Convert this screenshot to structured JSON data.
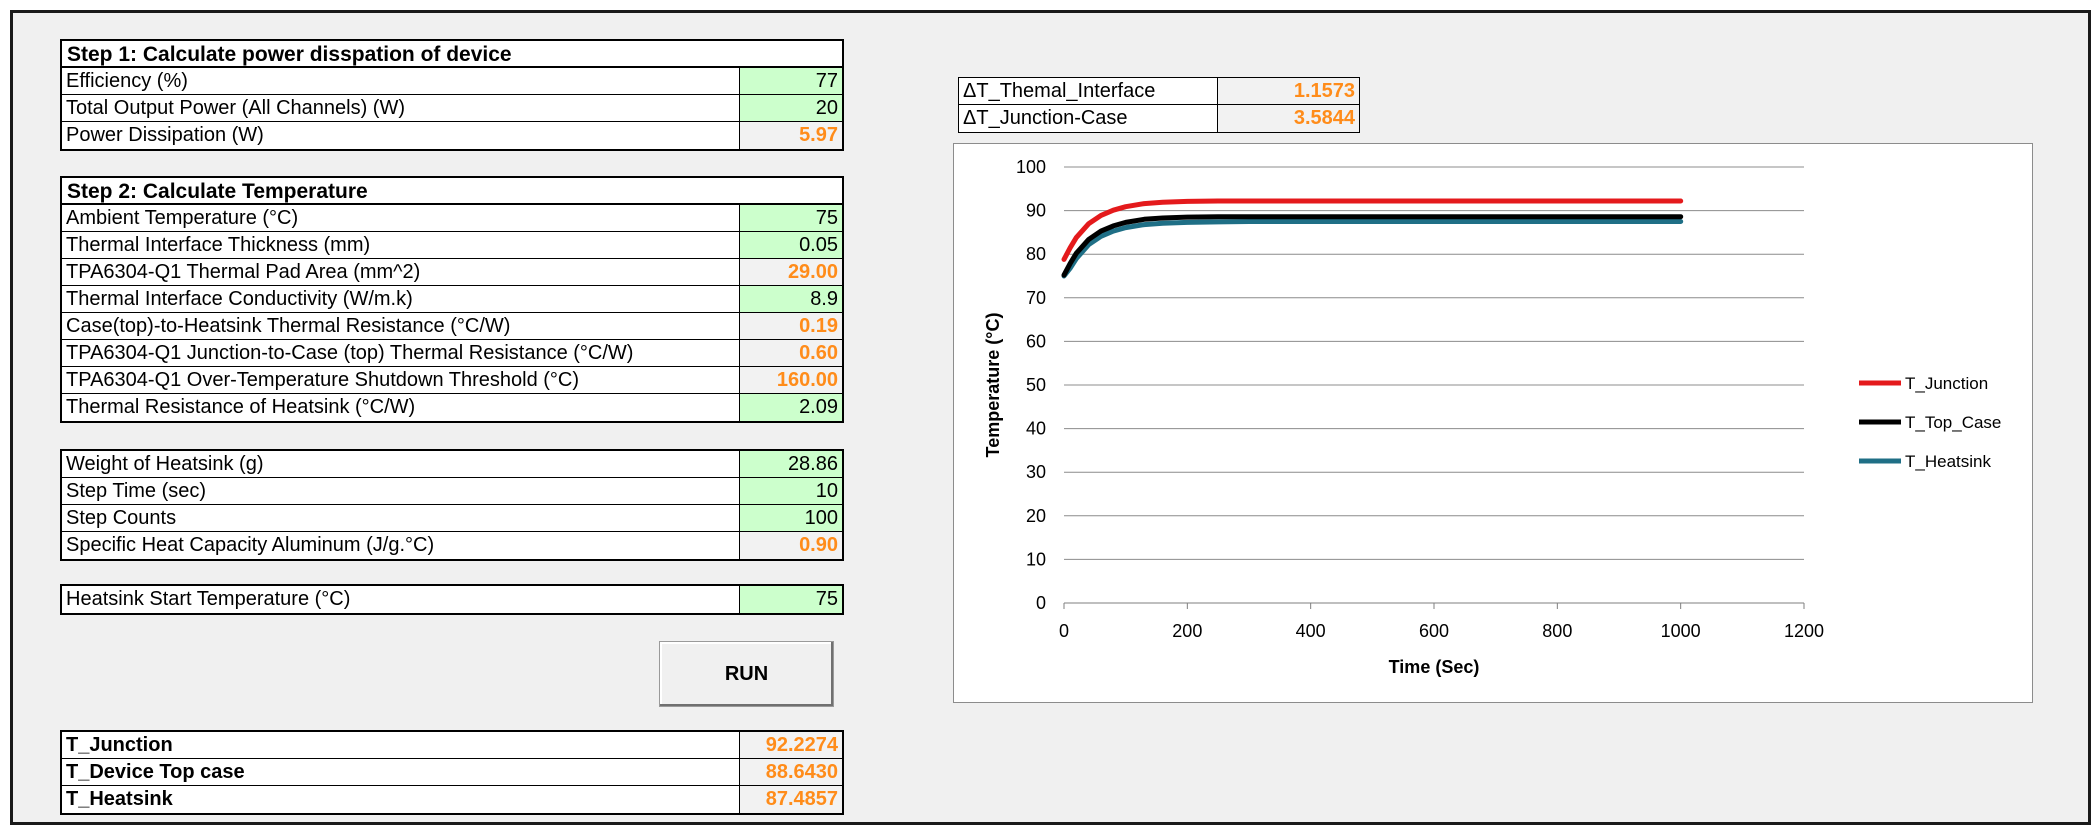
{
  "step1": {
    "title": "Step 1: Calculate power disspation of device",
    "rows": [
      {
        "label": "Efficiency (%)",
        "value": "77"
      },
      {
        "label": "Total Output Power (All Channels) (W)",
        "value": "20"
      },
      {
        "label": "Power Dissipation (W)",
        "value": "5.97"
      }
    ]
  },
  "step2": {
    "title": "Step 2: Calculate Temperature",
    "rows": [
      {
        "label": "Ambient Temperature (°C)",
        "value": "75"
      },
      {
        "label": "Thermal Interface Thickness (mm)",
        "value": "0.05"
      },
      {
        "label": "TPA6304-Q1 Thermal Pad Area (mm^2)",
        "value": "29.00"
      },
      {
        "label": "Thermal Interface Conductivity (W/m.k)",
        "value": "8.9"
      },
      {
        "label": "Case(top)-to-Heatsink Thermal Resistance (°C/W)",
        "value": "0.19"
      },
      {
        "label": "TPA6304-Q1 Junction-to-Case (top) Thermal Resistance (°C/W)",
        "value": "0.60"
      },
      {
        "label": "TPA6304-Q1 Over-Temperature Shutdown Threshold (°C)",
        "value": "160.00"
      },
      {
        "label": "Thermal Resistance of Heatsink (°C/W)",
        "value": "2.09"
      }
    ]
  },
  "heatsink": {
    "rows": [
      {
        "label": "Weight of Heatsink (g)",
        "value": "28.86"
      },
      {
        "label": "Step Time (sec)",
        "value": "10"
      },
      {
        "label": "Step Counts",
        "value": "100"
      },
      {
        "label": "Specific Heat Capacity Aluminum (J/g.°C)",
        "value": "0.90"
      }
    ]
  },
  "start": {
    "rows": [
      {
        "label": "Heatsink Start Temperature (°C)",
        "value": "75"
      }
    ]
  },
  "run_label": "RUN",
  "results": {
    "rows": [
      {
        "label": "T_Junction",
        "value": "92.2274"
      },
      {
        "label": "T_Device Top case",
        "value": "88.6430"
      },
      {
        "label": "T_Heatsink",
        "value": "87.4857"
      }
    ]
  },
  "deltas": {
    "rows": [
      {
        "label": "ΔT_Themal_Interface",
        "value": "1.1573"
      },
      {
        "label": "ΔT_Junction-Case",
        "value": "3.5844"
      }
    ]
  },
  "colors": {
    "input_fill": "#ccffcc",
    "calc_text": "#ff8c1a",
    "junction": "#e41a1c",
    "top_case": "#000000",
    "heatsink": "#1f6f86"
  },
  "chart_data": {
    "type": "line",
    "xlabel": "Time (Sec)",
    "ylabel": "Temperature (°C)",
    "xlim": [
      0,
      1200
    ],
    "ylim": [
      0,
      100
    ],
    "xticks": [
      0,
      200,
      400,
      600,
      800,
      1000,
      1200
    ],
    "yticks": [
      0,
      10,
      20,
      30,
      40,
      50,
      60,
      70,
      80,
      90,
      100
    ],
    "grid": "horizontal",
    "legend": "right",
    "series": [
      {
        "name": "T_Junction",
        "color": "#e41a1c",
        "x": [
          0,
          10,
          20,
          40,
          60,
          80,
          100,
          130,
          160,
          200,
          250,
          300,
          400,
          600,
          800,
          1000
        ],
        "y": [
          78.8,
          81.5,
          83.8,
          87.0,
          88.9,
          90.1,
          90.9,
          91.6,
          91.9,
          92.1,
          92.2,
          92.2,
          92.2,
          92.2,
          92.2,
          92.2
        ]
      },
      {
        "name": "T_Top_Case",
        "color": "#000000",
        "x": [
          0,
          10,
          20,
          40,
          60,
          80,
          100,
          130,
          160,
          200,
          250,
          300,
          400,
          600,
          800,
          1000
        ],
        "y": [
          75.2,
          77.9,
          80.2,
          83.4,
          85.3,
          86.5,
          87.3,
          88.0,
          88.3,
          88.5,
          88.6,
          88.6,
          88.6,
          88.6,
          88.6,
          88.6
        ]
      },
      {
        "name": "T_Heatsink",
        "color": "#1f6f86",
        "x": [
          0,
          10,
          20,
          40,
          60,
          80,
          100,
          130,
          160,
          200,
          250,
          300,
          400,
          600,
          800,
          1000
        ],
        "y": [
          75.0,
          76.8,
          79.0,
          82.2,
          84.1,
          85.3,
          86.1,
          86.8,
          87.1,
          87.3,
          87.4,
          87.5,
          87.5,
          87.5,
          87.5,
          87.5
        ]
      }
    ]
  }
}
